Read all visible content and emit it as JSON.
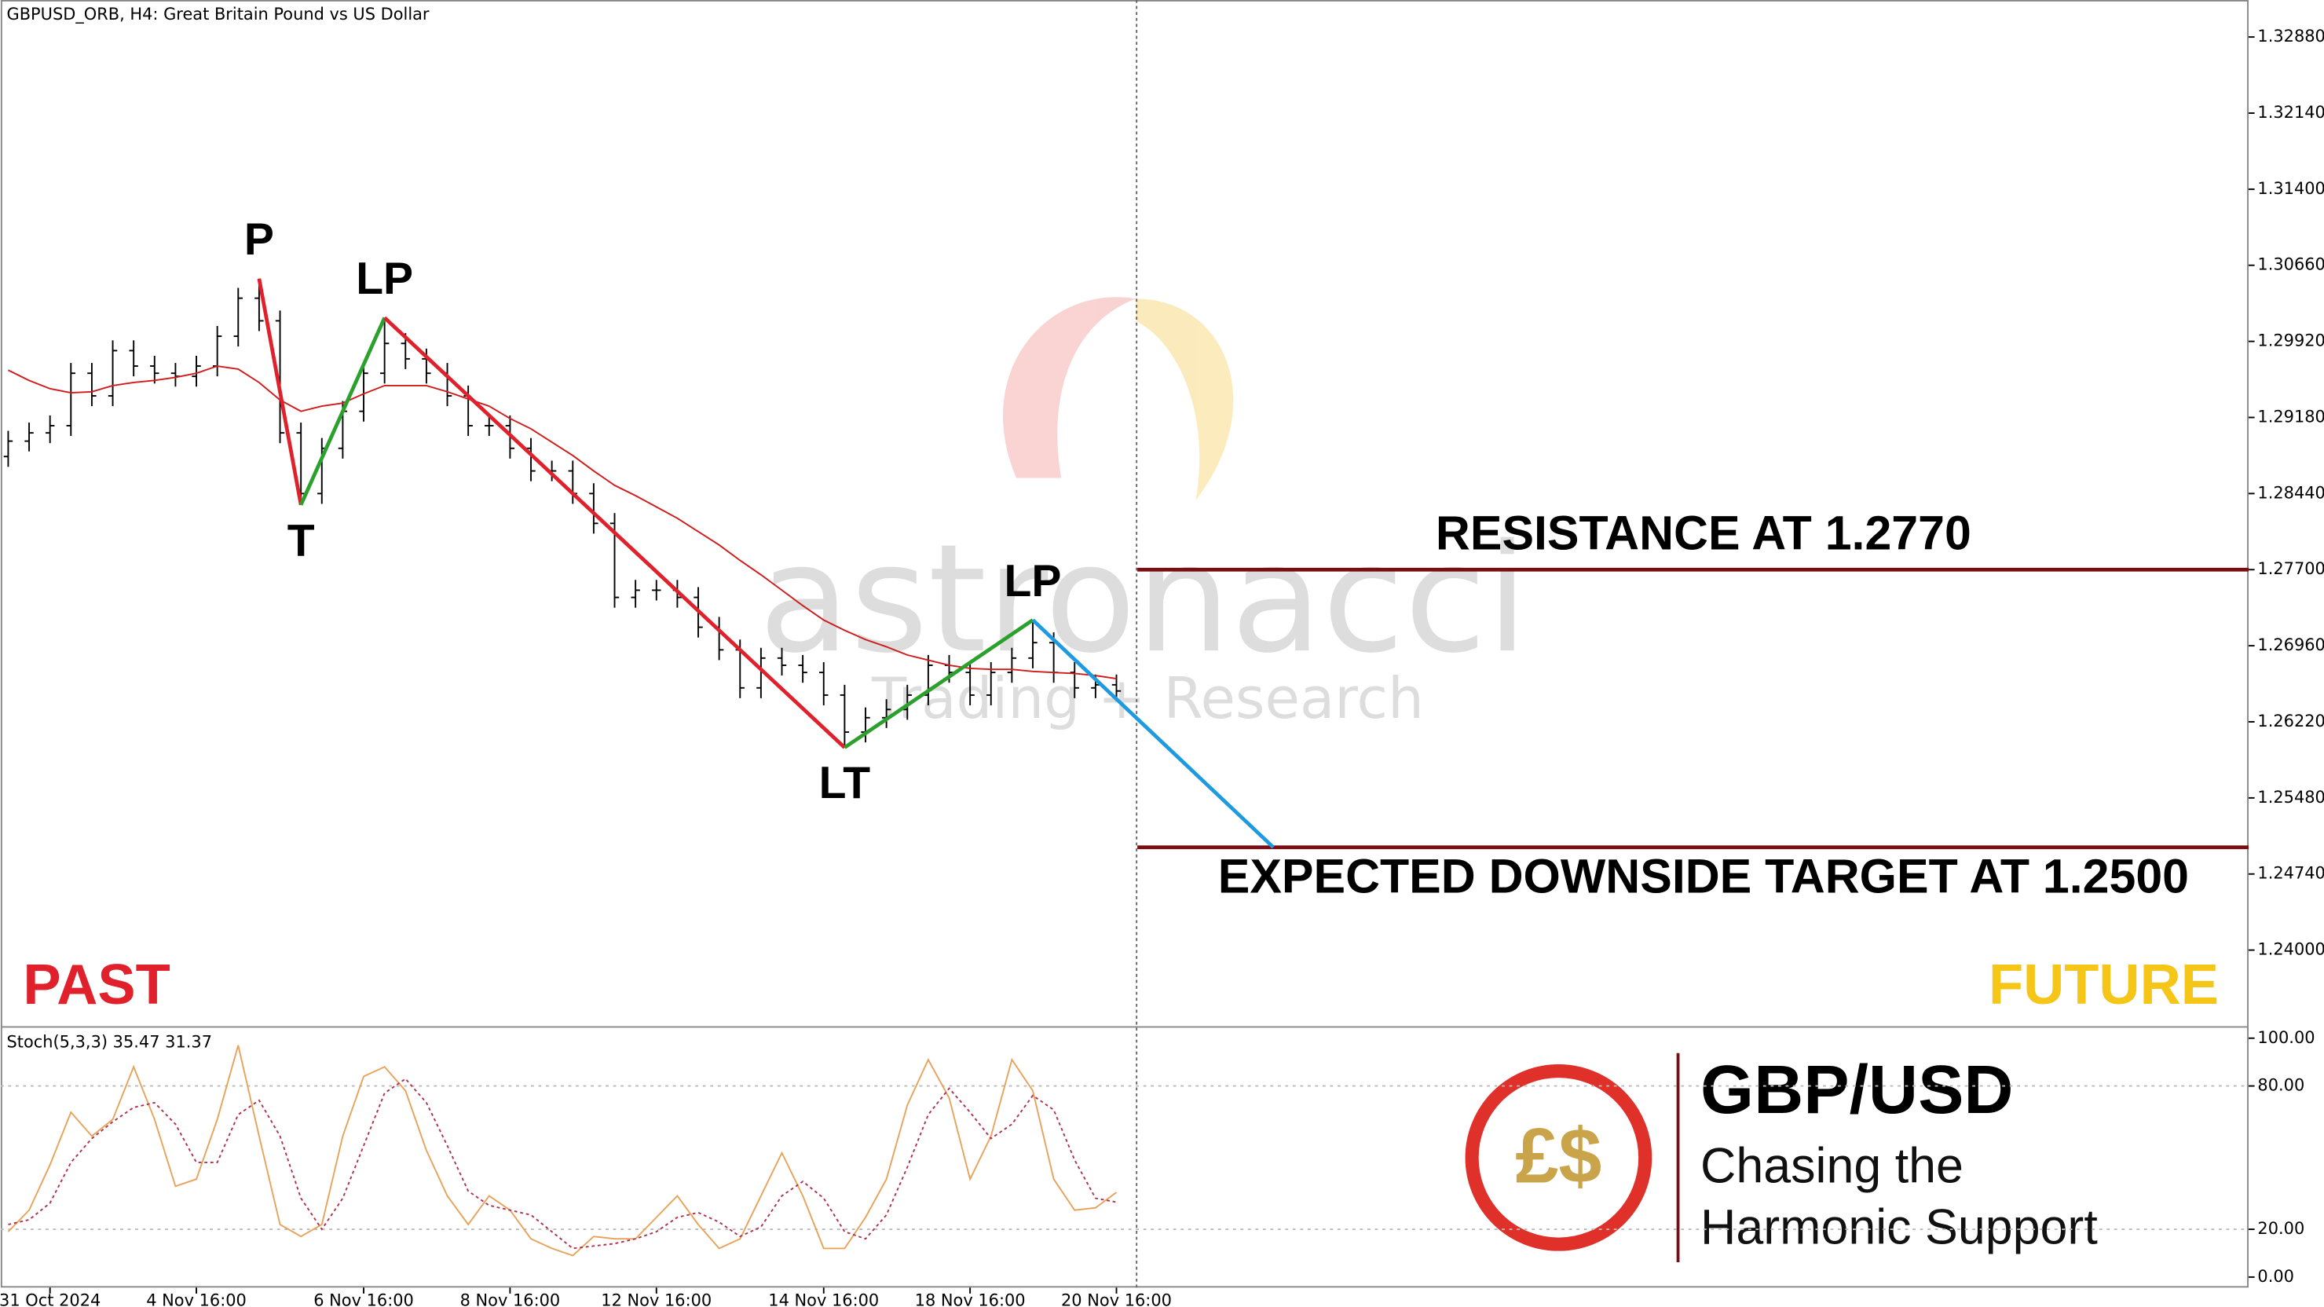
{
  "chart_data": [
    {
      "type": "ohlc",
      "title": "GBPUSD_ORB, H4:  Great Britain Pound vs US Dollar",
      "categories": [
        null,
        null,
        "31 Oct 2024",
        null,
        null,
        null,
        null,
        null,
        null,
        "4 Nov 16:00",
        null,
        null,
        null,
        null,
        null,
        null,
        null,
        "6 Nov 16:00",
        null,
        null,
        null,
        null,
        null,
        null,
        "8 Nov 16:00",
        null,
        null,
        null,
        null,
        null,
        null,
        "12 Nov 16:00",
        null,
        null,
        null,
        null,
        null,
        null,
        null,
        "14 Nov 16:00",
        null,
        null,
        null,
        null,
        null,
        null,
        "18 Nov 16:00",
        null,
        null,
        null,
        null,
        null,
        null,
        "20 Nov 16:00"
      ],
      "open": [
        1.288,
        1.2895,
        1.2903,
        1.291,
        1.2961,
        1.2939,
        1.2983,
        1.2968,
        1.2961,
        1.2958,
        1.2968,
        1.2997,
        1.3034,
        1.3012,
        1.2903,
        1.2844,
        1.2888,
        1.2924,
        1.2961,
        1.299,
        1.2975,
        1.2961,
        1.2939,
        1.291,
        1.291,
        1.2888,
        1.2866,
        1.2866,
        1.2844,
        1.2815,
        1.2743,
        1.275,
        1.275,
        1.2743,
        1.2714,
        1.2692,
        1.2655,
        1.2684,
        1.2677,
        1.267,
        1.2648,
        1.2612,
        1.2626,
        1.2634,
        1.2648,
        1.2677,
        1.267,
        1.2648,
        1.267,
        1.2684,
        1.2699,
        1.267,
        1.2655,
        1.2658
      ],
      "high": [
        1.2905,
        1.2913,
        1.292,
        1.2971,
        1.2971,
        1.2993,
        1.2993,
        1.2978,
        1.2971,
        1.2978,
        1.3007,
        1.3044,
        1.3053,
        1.3022,
        1.2913,
        1.2898,
        1.2934,
        1.2971,
        1.3015,
        1.3,
        1.2985,
        1.2971,
        1.2949,
        1.292,
        1.292,
        1.2898,
        1.2876,
        1.2876,
        1.2854,
        1.2825,
        1.276,
        1.276,
        1.276,
        1.2753,
        1.2724,
        1.2702,
        1.2694,
        1.2694,
        1.2687,
        1.268,
        1.2658,
        1.2636,
        1.2644,
        1.2658,
        1.2687,
        1.2687,
        1.268,
        1.268,
        1.2694,
        1.2721,
        1.2709,
        1.268,
        1.2668,
        1.2668
      ],
      "low": [
        1.287,
        1.2885,
        1.2893,
        1.29,
        1.2929,
        1.2929,
        1.2958,
        1.2951,
        1.2948,
        1.2948,
        1.2958,
        1.2987,
        1.3002,
        1.2893,
        1.2833,
        1.2834,
        1.2878,
        1.2914,
        1.2951,
        1.2965,
        1.2951,
        1.2929,
        1.29,
        1.29,
        1.2878,
        1.2856,
        1.2856,
        1.2834,
        1.2805,
        1.2733,
        1.2733,
        1.274,
        1.2733,
        1.2704,
        1.2682,
        1.2645,
        1.2645,
        1.2667,
        1.266,
        1.2638,
        1.2597,
        1.2602,
        1.2616,
        1.2624,
        1.2638,
        1.266,
        1.2638,
        1.2638,
        1.266,
        1.2674,
        1.266,
        1.2645,
        1.2645,
        1.2642
      ],
      "close": [
        1.2895,
        1.2903,
        1.291,
        1.2961,
        1.2939,
        1.2983,
        1.2968,
        1.2961,
        1.2958,
        1.2968,
        1.2997,
        1.3034,
        1.3012,
        1.2903,
        1.2844,
        1.2888,
        1.2924,
        1.2961,
        1.299,
        1.2975,
        1.2961,
        1.2939,
        1.291,
        1.291,
        1.2888,
        1.2866,
        1.2866,
        1.2844,
        1.2815,
        1.2743,
        1.275,
        1.275,
        1.2743,
        1.2714,
        1.2692,
        1.2655,
        1.2684,
        1.2677,
        1.267,
        1.2648,
        1.2612,
        1.2626,
        1.2634,
        1.2648,
        1.2677,
        1.267,
        1.2648,
        1.267,
        1.2684,
        1.2699,
        1.267,
        1.2655,
        1.2658,
        1.2652
      ],
      "bar_color": "#000000",
      "ma": {
        "color": "#d11a1a",
        "values": [
          1.2964,
          1.2954,
          1.2946,
          1.2942,
          1.2943,
          1.2949,
          1.2952,
          1.2954,
          1.2957,
          1.2961,
          1.2968,
          1.2965,
          1.2952,
          1.2935,
          1.2924,
          1.2929,
          1.2932,
          1.2941,
          1.2949,
          1.2949,
          1.2949,
          1.2943,
          1.2936,
          1.2929,
          1.2917,
          1.2907,
          1.2894,
          1.2881,
          1.2866,
          1.2852,
          1.2842,
          1.2831,
          1.282,
          1.2807,
          1.2794,
          1.2779,
          1.2765,
          1.275,
          1.2735,
          1.2721,
          1.2711,
          1.2702,
          1.2695,
          1.2687,
          1.2682,
          1.2677,
          1.2674,
          1.2673,
          1.2673,
          1.2671,
          1.267,
          1.2669,
          1.2667,
          1.2664
        ]
      },
      "pattern": {
        "points": [
          {
            "label": "P",
            "x": 12,
            "y": 1.3053
          },
          {
            "label": "T",
            "x": 14,
            "y": 1.2833
          },
          {
            "label": "LP",
            "x": 18,
            "y": 1.3015
          },
          {
            "label": "LT",
            "x": 40,
            "y": 1.2597
          },
          {
            "label": "LP",
            "x": 49,
            "y": 1.2721
          },
          {
            "x": 60.5,
            "y": 1.25
          }
        ],
        "colors": [
          "#e0202a",
          "#2ca02c",
          "#e0202a",
          "#2ca02c",
          "#1e9be0"
        ]
      },
      "levels": [
        {
          "label": "RESISTANCE AT 1.2770",
          "value": 1.277,
          "color": "#7a0c12"
        },
        {
          "label": "EXPECTED DOWNSIDE TARGET AT 1.2500",
          "value": 1.25,
          "color": "#7a0c12"
        }
      ],
      "past_label": "PAST",
      "future_label": "FUTURE",
      "ylim": [
        1.2326,
        1.3324
      ],
      "yticks": [
        {
          "value": 1.3288,
          "label": "1.32880"
        },
        {
          "value": 1.3214,
          "label": "1.32140"
        },
        {
          "value": 1.314,
          "label": "1.31400"
        },
        {
          "value": 1.3066,
          "label": "1.30660"
        },
        {
          "value": 1.2992,
          "label": "1.29920"
        },
        {
          "value": 1.2918,
          "label": "1.29180"
        },
        {
          "value": 1.2844,
          "label": "1.28440"
        },
        {
          "value": 1.277,
          "label": "1.27700"
        },
        {
          "value": 1.2696,
          "label": "1.26960"
        },
        {
          "value": 1.2622,
          "label": "1.26220"
        },
        {
          "value": 1.2548,
          "label": "1.25480"
        },
        {
          "value": 1.2474,
          "label": "1.24740"
        },
        {
          "value": 1.24,
          "label": "1.24000"
        }
      ]
    },
    {
      "type": "stochastic",
      "title": "Stoch(5,3,3) 35.47 31.37",
      "series": [
        {
          "color": "#e8a25a",
          "values": [
            19,
            28,
            47,
            69,
            59,
            66,
            88,
            66,
            38,
            41,
            66,
            97,
            59,
            22,
            17,
            22,
            59,
            84,
            88,
            78,
            53,
            34,
            22,
            34,
            28,
            16,
            12,
            9,
            17,
            16,
            16,
            25,
            34,
            22,
            12,
            16,
            34,
            52,
            34,
            12,
            12,
            25,
            41,
            72,
            91,
            75,
            41,
            59,
            91,
            78,
            41,
            28,
            29,
            35.47
          ]
        },
        {
          "color": "#b03050",
          "values": [
            22,
            24,
            31,
            48,
            58,
            65,
            71,
            73,
            64,
            48,
            48,
            68,
            74,
            59,
            33,
            20,
            33,
            55,
            77,
            83,
            73,
            55,
            36,
            30,
            28,
            26,
            19,
            12,
            13,
            14,
            16,
            19,
            25,
            27,
            23,
            17,
            21,
            34,
            40,
            33,
            19,
            16,
            26,
            46,
            68,
            79,
            69,
            58,
            64,
            76,
            70,
            49,
            33,
            31.37
          ]
        }
      ],
      "levels": [
        80,
        20
      ],
      "ylim": [
        -4.4,
        104.4
      ],
      "yticks": [
        {
          "value": 100,
          "label": "100.00"
        },
        {
          "value": 80,
          "label": "80.00"
        },
        {
          "value": 20,
          "label": "20.00"
        },
        {
          "value": 0,
          "label": "0.00"
        }
      ]
    }
  ],
  "watermark": {
    "brand": "astronacci",
    "tagline": "Trading + Research"
  },
  "badge": {
    "symbol": "£$",
    "pair": "GBP/USD",
    "line1": "Chasing the",
    "line2": "Harmonic Support"
  }
}
